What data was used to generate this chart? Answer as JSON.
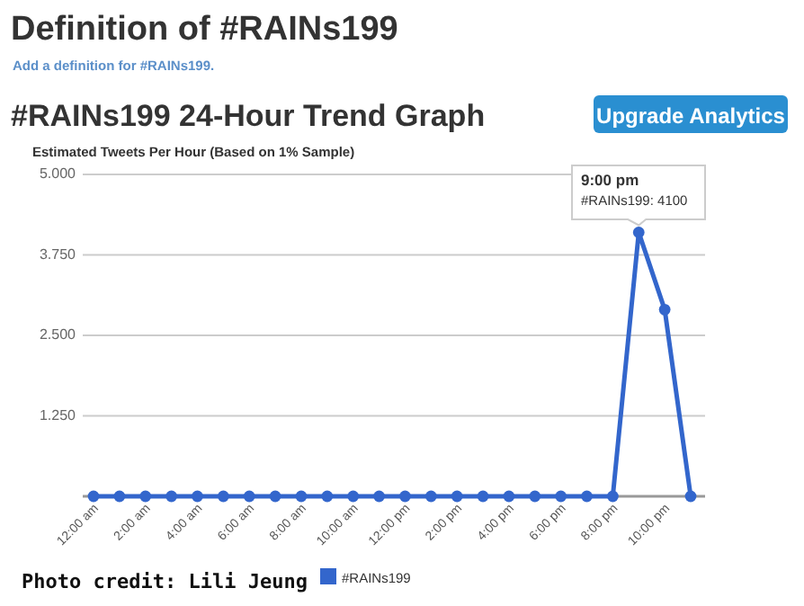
{
  "chart_data": {
    "type": "line",
    "title": "Definition of #RAINs199",
    "subtitle": "Add a definition for #RAINs199.",
    "ylabel": "Estimated Tweets Per Hour (Based on 1% Sample)",
    "categories": [
      "12:00 am",
      null,
      "2:00 am",
      null,
      "4:00 am",
      null,
      "6:00 am",
      null,
      "8:00 am",
      null,
      "10:00 am",
      null,
      "12:00 pm",
      null,
      "2:00 pm",
      null,
      "4:00 pm",
      null,
      "6:00 pm",
      null,
      "8:00 pm",
      null,
      "10:00 pm",
      null
    ],
    "series": [
      {
        "name": "#RAINs199",
        "color": "#3366cc",
        "values": [
          0,
          0,
          0,
          0,
          0,
          0,
          0,
          0,
          0,
          0,
          0,
          0,
          0,
          0,
          0,
          0,
          0,
          0,
          0,
          0,
          0,
          4100,
          2900,
          0
        ]
      }
    ],
    "ylim": [
      0,
      5000
    ],
    "yticks": [
      {
        "value": 0,
        "label": null
      },
      {
        "value": 1250,
        "label": "1.250"
      },
      {
        "value": 2500,
        "label": "2.500"
      },
      {
        "value": 3750,
        "label": "3.750"
      },
      {
        "value": 5000,
        "label": "5.000"
      }
    ],
    "grid": "y",
    "legend": "bottom",
    "marker": "circle",
    "line_style": "solid",
    "annotations": [
      "#RAINs199 24-Hour Trend Graph",
      "Upgrade Analytics",
      "Photo credit: Lili Jeung",
      "9:00 pm\n#RAINs199: 4100"
    ]
  }
}
